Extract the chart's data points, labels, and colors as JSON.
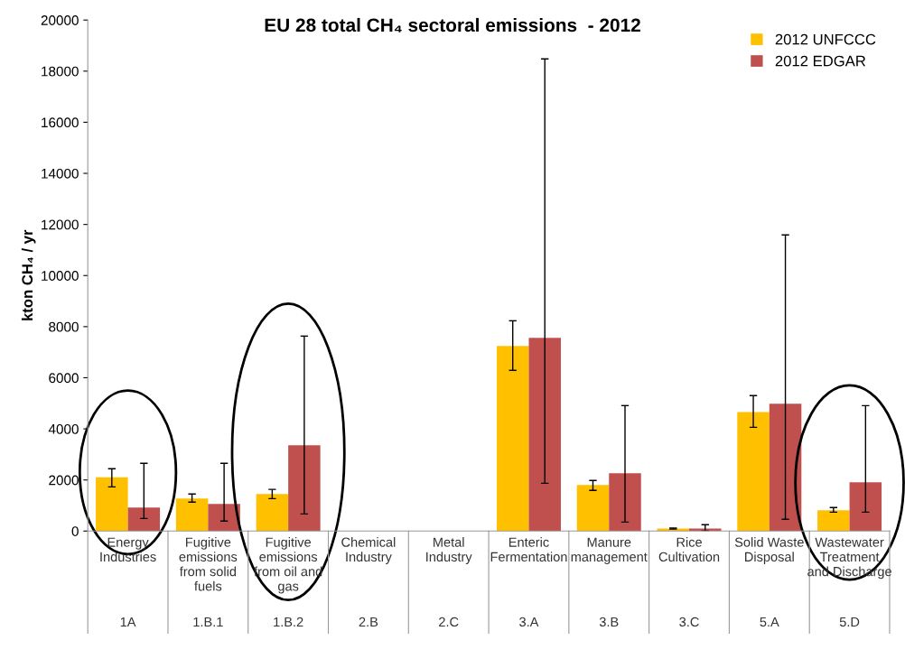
{
  "chart_data": {
    "type": "bar",
    "title": "EU 28 total CH₄ sectoral emissions  - 2012",
    "ylabel": "kton CH₄ / yr",
    "categories": [
      "Energy\nIndustries\n1A",
      "Fugitive\nemissions\nfrom solid\nfuels\n1.B.1",
      "Fugitive\nemissions\nfrom oil and\ngas\n1.B.2",
      "Chemical\nIndustry\n2.B",
      "Metal\nIndustry\n2.C",
      "Enteric\nFermentation\n3.A",
      "Manure\nmanagement\n3.B",
      "Rice\nCultivation\n3.C",
      "Solid Waste\nDisposal\n5.A",
      "Wastewater\nTreatment\nand Discharge\n5.D"
    ],
    "series": [
      {
        "name": "2012 UNFCCC",
        "color": "#ffc000",
        "values": [
          2100,
          1270,
          1450,
          null,
          null,
          7240,
          1800,
          100,
          4660,
          810
        ],
        "errors": [
          [
            1730,
            2440
          ],
          [
            1130,
            1450
          ],
          [
            1270,
            1630
          ],
          null,
          null,
          [
            6290,
            8230
          ],
          [
            1590,
            1980
          ],
          [
            80,
            120
          ],
          [
            4060,
            5300
          ],
          [
            740,
            920
          ]
        ]
      },
      {
        "name": "2012 EDGAR",
        "color": "#c0504d",
        "values": [
          920,
          1060,
          3360,
          null,
          null,
          7560,
          2260,
          100,
          4980,
          1910
        ],
        "errors": [
          [
            490,
            2650
          ],
          [
            390,
            2650
          ],
          [
            670,
            7630
          ],
          null,
          null,
          [
            1870,
            18480
          ],
          [
            350,
            4910
          ],
          [
            0,
            250
          ],
          [
            460,
            11590
          ],
          [
            740,
            4910
          ]
        ]
      }
    ],
    "ylim": [
      0,
      20000
    ],
    "yticks": [
      0,
      2000,
      4000,
      6000,
      8000,
      10000,
      12000,
      14000,
      16000,
      18000,
      20000
    ],
    "legend": "top right",
    "grid": false
  }
}
